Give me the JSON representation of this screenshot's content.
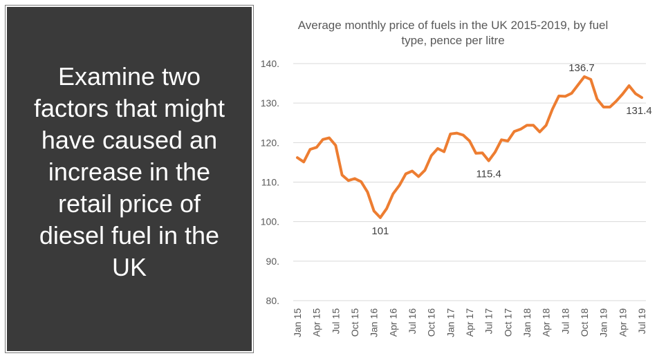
{
  "question": {
    "text": "Examine two factors that might have caused an increase in the retail price of diesel fuel in the UK"
  },
  "colors": {
    "panel": "#3a3a3a",
    "line": "#ed7d31",
    "grid": "#d9d9d9"
  },
  "chart_data": {
    "type": "line",
    "title": "Average monthly price of fuels in the UK 2015-2019, by fuel type, pence per litre",
    "xlabel": "",
    "ylabel": "",
    "ylim": [
      80,
      140
    ],
    "yticks": [
      80,
      90,
      100,
      110,
      120,
      130,
      140
    ],
    "ytick_labels": [
      "80.",
      "90.",
      "100.",
      "110.",
      "120.",
      "130.",
      "140."
    ],
    "grid": true,
    "legend": "none",
    "categories": [
      "Jan 15",
      "Feb 15",
      "Mar 15",
      "Apr 15",
      "May 15",
      "Jun 15",
      "Jul 15",
      "Aug 15",
      "Sep 15",
      "Oct 15",
      "Nov 15",
      "Dec 15",
      "Jan 16",
      "Feb 16",
      "Mar 16",
      "Apr 16",
      "May 16",
      "Jun 16",
      "Jul 16",
      "Aug 16",
      "Sep 16",
      "Oct 16",
      "Nov 16",
      "Dec 16",
      "Jan 17",
      "Feb 17",
      "Mar 17",
      "Apr 17",
      "May 17",
      "Jun 17",
      "Jul 17",
      "Aug 17",
      "Sep 17",
      "Oct 17",
      "Nov 17",
      "Dec 17",
      "Jan 18",
      "Feb 18",
      "Mar 18",
      "Apr 18",
      "May 18",
      "Jun 18",
      "Jul 18",
      "Aug 18",
      "Sep 18",
      "Oct 18",
      "Nov 18",
      "Dec 18",
      "Jan 19",
      "Feb 19",
      "Mar 19",
      "Apr 19",
      "May 19",
      "Jun 19",
      "Jul 19"
    ],
    "xtick_labels": [
      "Jan 15",
      "Apr 15",
      "Jul 15",
      "Oct 15",
      "Jan 16",
      "Apr 16",
      "Jul 16",
      "Oct 16",
      "Jan 17",
      "Apr 17",
      "Jul 17",
      "Oct 17",
      "Jan 18",
      "Apr 18",
      "Jul 18",
      "Oct 18",
      "Jan 19",
      "Apr 19",
      "Jul 19"
    ],
    "xtick_every": 3,
    "series": [
      {
        "values": [
          116.2,
          115.1,
          118.3,
          118.8,
          120.8,
          121.2,
          119.3,
          111.8,
          110.4,
          110.9,
          110.1,
          107.5,
          102.7,
          101.0,
          103.3,
          107.0,
          109.2,
          112.1,
          112.8,
          111.4,
          113.0,
          116.7,
          118.5,
          117.7,
          122.2,
          122.4,
          121.9,
          120.4,
          117.3,
          117.4,
          115.4,
          117.6,
          120.7,
          120.4,
          122.8,
          123.4,
          124.4,
          124.4,
          122.7,
          124.4,
          128.5,
          131.8,
          131.7,
          132.5,
          134.6,
          136.7,
          136.0,
          131.0,
          129.0,
          129.0,
          130.5,
          132.3,
          134.4,
          132.4,
          131.4
        ]
      }
    ],
    "data_labels": [
      {
        "index": 13,
        "text": "101"
      },
      {
        "index": 30,
        "text": "115.4"
      },
      {
        "index": 45,
        "text": "136.7"
      },
      {
        "index": 54,
        "text": "131.4"
      }
    ]
  }
}
